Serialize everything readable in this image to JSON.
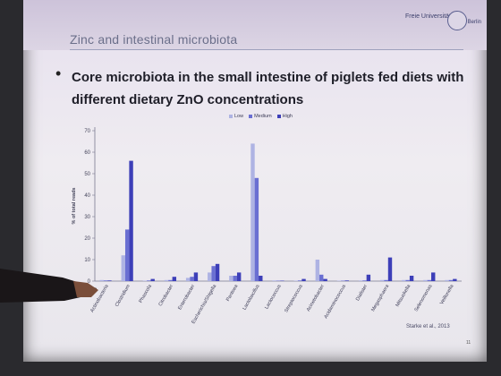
{
  "slide": {
    "title": "Zinc and intestinal microbiota",
    "university": "Freie Universität",
    "university_city": "Berlin",
    "bullet": "Core microbiota in the small intestine of piglets fed diets with different dietary ZnO concentrations",
    "source": "Starke et al., 2013",
    "page_number": "11"
  },
  "colors": {
    "low": "#aeb3e3",
    "medium": "#6a6fd2",
    "high": "#3d3fb8"
  },
  "chart_data": {
    "type": "bar",
    "ylabel": "% of total reads",
    "ylim": [
      0,
      70
    ],
    "yticks": [
      0,
      10,
      20,
      30,
      40,
      50,
      60,
      70
    ],
    "legend": [
      "Low",
      "Medium",
      "High"
    ],
    "legend_position": "top-center",
    "grid": false,
    "categories": [
      "Actinobacteria",
      "Clostridium",
      "Phascola",
      "Citrobacter",
      "Enterobacter",
      "Escherichia/Shigella",
      "Pantoea",
      "Lactobacillus",
      "Lactococcus",
      "Streptococcus",
      "Acinetobacter",
      "Acidaminococcus",
      "Dialister",
      "Megasphaera",
      "Mitsuokella",
      "Selenomonas",
      "Veillonella"
    ],
    "series": [
      {
        "name": "Low",
        "values": [
          0.5,
          12,
          0.2,
          0.5,
          1.5,
          4,
          2.5,
          64,
          0.3,
          0.2,
          10,
          0.2,
          0.3,
          0.5,
          0.5,
          0.5,
          0.5
        ]
      },
      {
        "name": "Medium",
        "values": [
          0.3,
          24,
          0.3,
          0.5,
          2,
          7,
          2.5,
          48,
          0.2,
          0.3,
          3,
          0.2,
          0.3,
          0.5,
          0.5,
          0.5,
          0.5
        ]
      },
      {
        "name": "High",
        "values": [
          0.3,
          56,
          1,
          2,
          4,
          8,
          4,
          2.5,
          0.2,
          1,
          1,
          0.3,
          3,
          11,
          2.5,
          4,
          1
        ]
      }
    ]
  }
}
